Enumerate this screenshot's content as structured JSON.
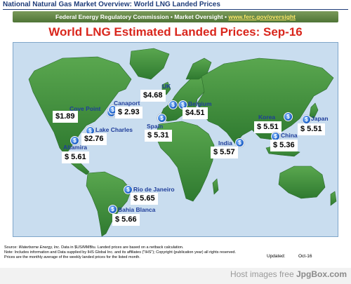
{
  "header": {
    "title": "National Natural Gas Market Overview: World LNG Landed Prices",
    "agency": "Federal Energy Regulatory Commission • Market Oversight • ",
    "url": "www.ferc.gov/oversight"
  },
  "map_title": "World LNG Estimated Landed Prices: Sep-16",
  "terminals": [
    {
      "name": "Cove Point",
      "price": "$1.89"
    },
    {
      "name": "Canaport",
      "price": "$ 2.93"
    },
    {
      "name": "Lake Charles",
      "price": "$2.76"
    },
    {
      "name": "Altamira",
      "price": "$ 5.61"
    },
    {
      "name": "UK",
      "price": "$4.68"
    },
    {
      "name": "Belgium",
      "price": "$4.51"
    },
    {
      "name": "Spain",
      "price": "$ 5.31"
    },
    {
      "name": "India",
      "price": "$ 5.57"
    },
    {
      "name": "Korea",
      "price": "$ 5.51"
    },
    {
      "name": "Japan",
      "price": "$ 5.51"
    },
    {
      "name": "China",
      "price": "$ 5.36"
    },
    {
      "name": "Rio de Janeiro",
      "price": "$ 5.65"
    },
    {
      "name": "Bahia Blanca",
      "price": "$ 5.66"
    }
  ],
  "footnote": {
    "source_label": "Source: ",
    "source": "Waterborne Energy, Inc.",
    "line1": " Data in $US/MMBtu. Landed prices are based on a netback calculation.",
    "line2": "Note: Includes information and Data supplied by IHS Global Inc. and its affiliates (\"IHS\"); Copyright (publication year) all rights reserved.",
    "line3": "Prices are the monthly average of the weekly landed prices for the listed month."
  },
  "updated": {
    "label": "Updated:",
    "value": "Oct-16"
  },
  "watermark": {
    "text": "Host images free ",
    "brand": "JpgBox.com"
  },
  "colors": {
    "ocean": "#c9ddef",
    "land": "#3f8f3c",
    "title_red": "#d9261c",
    "label_blue": "#1f3d9a"
  }
}
